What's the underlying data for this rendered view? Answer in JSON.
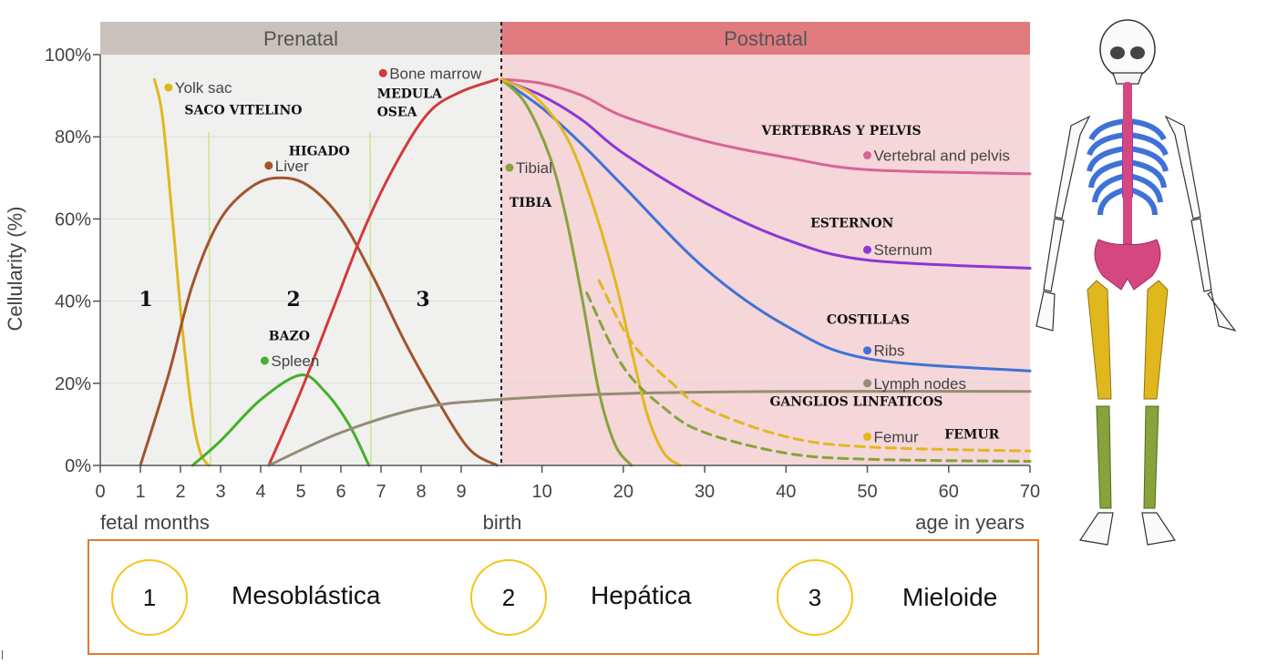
{
  "chart_data": {
    "type": "line",
    "ylabel": "Cellularity (%)",
    "yticks": [
      "0%",
      "20%",
      "40%",
      "60%",
      "80%",
      "100%"
    ],
    "ylim": [
      0,
      100
    ],
    "fetal_ticks": [
      "0",
      "1",
      "2",
      "3",
      "4",
      "5",
      "6",
      "7",
      "8",
      "9"
    ],
    "age_ticks": [
      "10",
      "20",
      "30",
      "40",
      "50",
      "60",
      "70"
    ],
    "axis_labels": {
      "left": "fetal months",
      "center": "birth",
      "right": "age in years"
    },
    "periods": {
      "prenatal": "Prenatal",
      "postnatal": "Postnatal"
    },
    "stage_numbers": [
      "1",
      "2",
      "3"
    ],
    "series": [
      {
        "name": "Yolk sac",
        "color": "#e0b81e",
        "x_unit": "fetal_month",
        "points": [
          [
            1.35,
            94
          ],
          [
            1.55,
            85
          ],
          [
            1.8,
            60
          ],
          [
            2.05,
            33
          ],
          [
            2.3,
            12
          ],
          [
            2.5,
            3
          ],
          [
            2.7,
            0
          ]
        ]
      },
      {
        "name": "Liver",
        "color": "#a0552c",
        "x_unit": "fetal_month",
        "points": [
          [
            1,
            0
          ],
          [
            1.7,
            22
          ],
          [
            2.3,
            44
          ],
          [
            3,
            60
          ],
          [
            3.8,
            68
          ],
          [
            4.5,
            70
          ],
          [
            5.2,
            68
          ],
          [
            6,
            60
          ],
          [
            6.8,
            46
          ],
          [
            7.6,
            30
          ],
          [
            8.4,
            16
          ],
          [
            9.2,
            4
          ],
          [
            9.9,
            0
          ]
        ]
      },
      {
        "name": "Spleen",
        "color": "#44b02a",
        "x_unit": "fetal_month",
        "points": [
          [
            2.3,
            0
          ],
          [
            3,
            6
          ],
          [
            4,
            16
          ],
          [
            5,
            22
          ],
          [
            5.6,
            18
          ],
          [
            6.2,
            10
          ],
          [
            6.7,
            0
          ]
        ]
      },
      {
        "name": "Bone marrow",
        "color": "#d23a3c",
        "x_unit": "fetal_month",
        "points": [
          [
            4.2,
            0
          ],
          [
            5,
            18
          ],
          [
            5.8,
            38
          ],
          [
            6.6,
            58
          ],
          [
            7.4,
            74
          ],
          [
            8.2,
            86
          ],
          [
            9,
            91
          ],
          [
            9.9,
            94
          ]
        ]
      },
      {
        "name": "Lymph nodes",
        "color": "#948c76",
        "x_unit": "mixed",
        "points": [
          [
            4.2,
            0
          ],
          [
            6,
            8
          ],
          [
            8,
            14
          ],
          [
            9.9,
            16
          ],
          [
            20,
            17.5
          ],
          [
            40,
            18
          ],
          [
            70,
            18
          ]
        ]
      },
      {
        "name": "Vertebral and pelvis",
        "color": "#d96394",
        "x_unit": "age",
        "points": [
          [
            5,
            94
          ],
          [
            10,
            93
          ],
          [
            15,
            90
          ],
          [
            20,
            85
          ],
          [
            30,
            79
          ],
          [
            40,
            75
          ],
          [
            50,
            72
          ],
          [
            70,
            71
          ]
        ]
      },
      {
        "name": "Sternum",
        "color": "#8a38d4",
        "x_unit": "age",
        "points": [
          [
            5,
            94
          ],
          [
            10,
            90
          ],
          [
            15,
            84
          ],
          [
            20,
            76
          ],
          [
            30,
            64
          ],
          [
            40,
            55
          ],
          [
            50,
            50
          ],
          [
            70,
            48
          ]
        ]
      },
      {
        "name": "Ribs",
        "color": "#3f72d6",
        "x_unit": "age",
        "points": [
          [
            5,
            94
          ],
          [
            10,
            87
          ],
          [
            15,
            78
          ],
          [
            20,
            68
          ],
          [
            30,
            48
          ],
          [
            40,
            34
          ],
          [
            50,
            26
          ],
          [
            70,
            23
          ]
        ]
      },
      {
        "name": "Tibial",
        "color": "#86a33c",
        "x_unit": "age",
        "points": [
          [
            5,
            94
          ],
          [
            8,
            88
          ],
          [
            11,
            75
          ],
          [
            13,
            60
          ],
          [
            15,
            40
          ],
          [
            17,
            18
          ],
          [
            19,
            5
          ],
          [
            21,
            0
          ]
        ]
      },
      {
        "name": "Femur",
        "color": "#e0b81e",
        "x_unit": "age",
        "points": [
          [
            5,
            94
          ],
          [
            9,
            90
          ],
          [
            13,
            80
          ],
          [
            16,
            65
          ],
          [
            19,
            45
          ],
          [
            21,
            28
          ],
          [
            23,
            12
          ],
          [
            25,
            3
          ],
          [
            27,
            0
          ]
        ]
      },
      {
        "name": "Tibial (dashed)",
        "color": "#86a33c",
        "x_unit": "age",
        "dashed": true,
        "points": [
          [
            15.5,
            42
          ],
          [
            20,
            24
          ],
          [
            25,
            14
          ],
          [
            30,
            8
          ],
          [
            40,
            3
          ],
          [
            50,
            1.5
          ],
          [
            70,
            1
          ]
        ]
      },
      {
        "name": "Femur (dashed)",
        "color": "#e0b81e",
        "x_unit": "age",
        "dashed": true,
        "points": [
          [
            17,
            45
          ],
          [
            21,
            30
          ],
          [
            26,
            20
          ],
          [
            30,
            14
          ],
          [
            40,
            7
          ],
          [
            50,
            4.5
          ],
          [
            70,
            3.5
          ]
        ]
      }
    ],
    "point_labels": [
      {
        "text": "Yolk sac",
        "color": "#e0b81e",
        "x": 1.7,
        "x_unit": "fetal_month",
        "y": 92
      },
      {
        "text": "Liver",
        "color": "#a0552c",
        "x": 4.2,
        "x_unit": "fetal_month",
        "y": 73
      },
      {
        "text": "Spleen",
        "color": "#44b02a",
        "x": 4.1,
        "x_unit": "fetal_month",
        "y": 25.5
      },
      {
        "text": "Bone marrow",
        "color": "#d23a3c",
        "x": 7.05,
        "x_unit": "fetal_month",
        "y": 95.5
      },
      {
        "text": "Tibial",
        "color": "#86a33c",
        "x": 6,
        "x_unit": "age",
        "y": 72.5
      },
      {
        "text": "Vertebral and pelvis",
        "color": "#d96394",
        "x": 50,
        "x_unit": "age",
        "y": 75.5
      },
      {
        "text": "Sternum",
        "color": "#8a38d4",
        "x": 50,
        "x_unit": "age",
        "y": 52.5
      },
      {
        "text": "Ribs",
        "color": "#3f72d6",
        "x": 50,
        "x_unit": "age",
        "y": 28
      },
      {
        "text": "Lymph nodes",
        "color": "#948c76",
        "x": 50,
        "x_unit": "age",
        "y": 20
      },
      {
        "text": "Femur",
        "color": "#e0b81e",
        "x": 50,
        "x_unit": "age",
        "y": 7
      }
    ],
    "annotations": [
      {
        "text": "SACO VITELINO",
        "x": 2.1,
        "x_unit": "fetal_month",
        "y": 85.5
      },
      {
        "text": "HIGADO",
        "x": 4.7,
        "x_unit": "fetal_month",
        "y": 75.5
      },
      {
        "text": "MEDULA",
        "x": 6.9,
        "x_unit": "fetal_month",
        "y": 89.5
      },
      {
        "text": "OSEA",
        "x": 6.9,
        "x_unit": "fetal_month",
        "y": 85
      },
      {
        "text": "BAZO",
        "x": 4.2,
        "x_unit": "fetal_month",
        "y": 30.5
      },
      {
        "text": "TIBIA",
        "x": 6,
        "x_unit": "age",
        "y": 63
      },
      {
        "text": "VERTEBRAS Y PELVIS",
        "x": 37,
        "x_unit": "age",
        "y": 80.5
      },
      {
        "text": "ESTERNON",
        "x": 43,
        "x_unit": "age",
        "y": 58
      },
      {
        "text": "COSTILLAS",
        "x": 45,
        "x_unit": "age",
        "y": 34.5
      },
      {
        "text": "GANGLIOS LINFATICOS",
        "x": 38,
        "x_unit": "age",
        "y": 14.5
      },
      {
        "text": "FEMUR",
        "x": 59.5,
        "x_unit": "age",
        "y": 6.5
      }
    ]
  },
  "stages": [
    {
      "number": "1",
      "label": "Mesoblástica"
    },
    {
      "number": "2",
      "label": "Hepática"
    },
    {
      "number": "3",
      "label": "Mieloide"
    }
  ],
  "skeleton_colors": {
    "skull": "#ffffff",
    "spine": "#d5487f",
    "ribs": "#3f72d6",
    "sternum": "#8a38d4",
    "pelvis": "#d5487f",
    "femur": "#e0b81e",
    "tibia": "#86a33c"
  }
}
